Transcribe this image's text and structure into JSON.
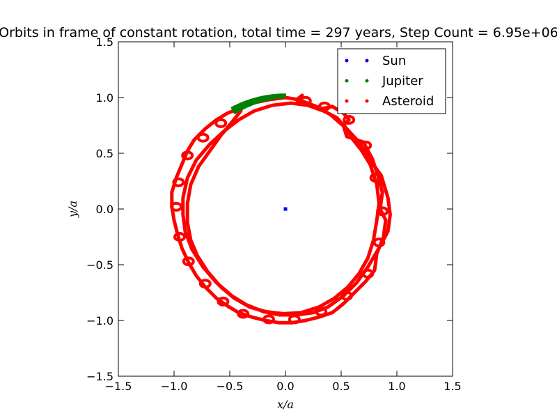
{
  "chart_data": {
    "type": "scatter",
    "title": "Orbits in frame of constant rotation, total time = 297 years, Step Count = 6.95e+06",
    "xlabel": "x/a",
    "ylabel": "y/a",
    "xlim": [
      -1.5,
      1.5
    ],
    "ylim": [
      -1.5,
      1.5
    ],
    "xticks": [
      "−1.5",
      "−1.0",
      "−0.5",
      "0.0",
      "0.5",
      "1.0",
      "1.5"
    ],
    "yticks": [
      "−1.5",
      "−1.0",
      "−0.5",
      "0.0",
      "0.5",
      "1.0",
      "1.5"
    ],
    "grid": false,
    "legend_position": "top-right",
    "series": [
      {
        "name": "Sun",
        "color": "#0000ff",
        "points": [
          [
            0.0,
            0.0
          ]
        ]
      },
      {
        "name": "Jupiter",
        "color": "#008000",
        "arc": {
          "radius": 1.0,
          "theta_start_deg": 90,
          "theta_end_deg": 118,
          "band_width": 0.06
        }
      },
      {
        "name": "Asteroid",
        "color": "#ff0000",
        "path": [
          [
            0.15,
            1.02
          ],
          [
            0.1,
            0.98
          ],
          [
            0.12,
            0.95
          ],
          [
            0.25,
            0.93
          ],
          [
            0.33,
            0.9
          ],
          [
            0.42,
            0.92
          ],
          [
            0.52,
            0.86
          ],
          [
            0.57,
            0.8
          ],
          [
            0.52,
            0.75
          ],
          [
            0.55,
            0.65
          ],
          [
            0.7,
            0.6
          ],
          [
            0.78,
            0.45
          ],
          [
            0.83,
            0.3
          ],
          [
            0.87,
            0.15
          ],
          [
            0.85,
            0.0
          ],
          [
            0.9,
            -0.1
          ],
          [
            0.88,
            -0.25
          ],
          [
            0.82,
            -0.4
          ],
          [
            0.8,
            -0.55
          ],
          [
            0.72,
            -0.65
          ],
          [
            0.62,
            -0.75
          ],
          [
            0.52,
            -0.85
          ],
          [
            0.42,
            -0.93
          ],
          [
            0.3,
            -0.97
          ],
          [
            0.18,
            -1.0
          ],
          [
            0.06,
            -1.02
          ],
          [
            -0.06,
            -1.02
          ],
          [
            -0.18,
            -1.0
          ],
          [
            -0.3,
            -0.97
          ],
          [
            -0.42,
            -0.93
          ],
          [
            -0.52,
            -0.87
          ],
          [
            -0.62,
            -0.8
          ],
          [
            -0.72,
            -0.7
          ],
          [
            -0.8,
            -0.6
          ],
          [
            -0.87,
            -0.48
          ],
          [
            -0.93,
            -0.35
          ],
          [
            -0.97,
            -0.22
          ],
          [
            -1.0,
            -0.1
          ],
          [
            -1.02,
            0.02
          ],
          [
            -1.02,
            0.15
          ],
          [
            -0.98,
            0.28
          ],
          [
            -0.93,
            0.4
          ],
          [
            -0.88,
            0.52
          ],
          [
            -0.82,
            0.62
          ],
          [
            -0.72,
            0.72
          ],
          [
            -0.62,
            0.8
          ],
          [
            -0.52,
            0.86
          ],
          [
            -0.42,
            0.9
          ],
          [
            -0.3,
            0.95
          ],
          [
            -0.15,
            0.98
          ],
          [
            0.0,
            1.0
          ],
          [
            0.12,
            0.98
          ],
          [
            0.25,
            0.93
          ],
          [
            0.4,
            0.85
          ],
          [
            0.55,
            0.72
          ],
          [
            0.66,
            0.6
          ],
          [
            0.75,
            0.45
          ],
          [
            0.86,
            0.3
          ],
          [
            0.92,
            0.1
          ],
          [
            0.94,
            -0.05
          ],
          [
            0.92,
            -0.2
          ],
          [
            0.84,
            -0.35
          ],
          [
            0.74,
            -0.52
          ],
          [
            0.64,
            -0.66
          ],
          [
            0.52,
            -0.78
          ],
          [
            0.38,
            -0.88
          ],
          [
            0.25,
            -0.93
          ],
          [
            0.1,
            -0.95
          ],
          [
            -0.05,
            -0.95
          ],
          [
            -0.2,
            -0.92
          ],
          [
            -0.35,
            -0.86
          ],
          [
            -0.48,
            -0.78
          ],
          [
            -0.62,
            -0.66
          ],
          [
            -0.74,
            -0.52
          ],
          [
            -0.84,
            -0.36
          ],
          [
            -0.9,
            -0.2
          ],
          [
            -0.92,
            -0.05
          ],
          [
            -0.92,
            0.1
          ],
          [
            -0.88,
            0.28
          ],
          [
            -0.8,
            0.44
          ],
          [
            -0.68,
            0.58
          ],
          [
            -0.55,
            0.7
          ],
          [
            -0.42,
            0.8
          ],
          [
            -0.28,
            0.88
          ],
          [
            -0.12,
            0.93
          ],
          [
            0.05,
            0.95
          ],
          [
            0.2,
            0.93
          ],
          [
            0.34,
            0.88
          ],
          [
            0.46,
            0.82
          ],
          [
            0.55,
            0.72
          ],
          [
            0.6,
            0.63
          ],
          [
            0.68,
            0.53
          ],
          [
            0.76,
            0.4
          ],
          [
            0.82,
            0.22
          ],
          [
            0.84,
            0.05
          ],
          [
            0.82,
            -0.1
          ],
          [
            0.79,
            -0.28
          ],
          [
            0.74,
            -0.44
          ],
          [
            0.66,
            -0.58
          ],
          [
            0.56,
            -0.7
          ],
          [
            0.44,
            -0.8
          ],
          [
            0.3,
            -0.88
          ],
          [
            0.14,
            -0.93
          ],
          [
            -0.02,
            -0.94
          ],
          [
            -0.18,
            -0.92
          ],
          [
            -0.32,
            -0.88
          ],
          [
            -0.46,
            -0.8
          ],
          [
            -0.58,
            -0.7
          ],
          [
            -0.7,
            -0.56
          ],
          [
            -0.79,
            -0.42
          ],
          [
            -0.85,
            -0.28
          ],
          [
            -0.88,
            -0.12
          ],
          [
            -0.88,
            0.05
          ],
          [
            -0.85,
            0.22
          ],
          [
            -0.78,
            0.38
          ],
          [
            -0.68,
            0.52
          ],
          [
            -0.58,
            0.66
          ],
          [
            -0.48,
            0.78
          ],
          [
            -0.4,
            0.88
          ]
        ],
        "loops": [
          [
            0.18,
            0.97
          ],
          [
            0.35,
            0.92
          ],
          [
            0.57,
            0.8
          ],
          [
            0.72,
            0.57
          ],
          [
            0.81,
            0.28
          ],
          [
            0.87,
            -0.02
          ],
          [
            0.84,
            -0.3
          ],
          [
            0.74,
            -0.58
          ],
          [
            0.55,
            -0.78
          ],
          [
            0.32,
            -0.92
          ],
          [
            0.08,
            -0.99
          ],
          [
            -0.15,
            -0.99
          ],
          [
            -0.38,
            -0.94
          ],
          [
            -0.56,
            -0.83
          ],
          [
            -0.72,
            -0.67
          ],
          [
            -0.87,
            -0.47
          ],
          [
            -0.95,
            -0.25
          ],
          [
            -0.98,
            0.02
          ],
          [
            -0.96,
            0.24
          ],
          [
            -0.88,
            0.48
          ],
          [
            -0.74,
            0.64
          ],
          [
            -0.58,
            0.77
          ]
        ]
      }
    ]
  }
}
